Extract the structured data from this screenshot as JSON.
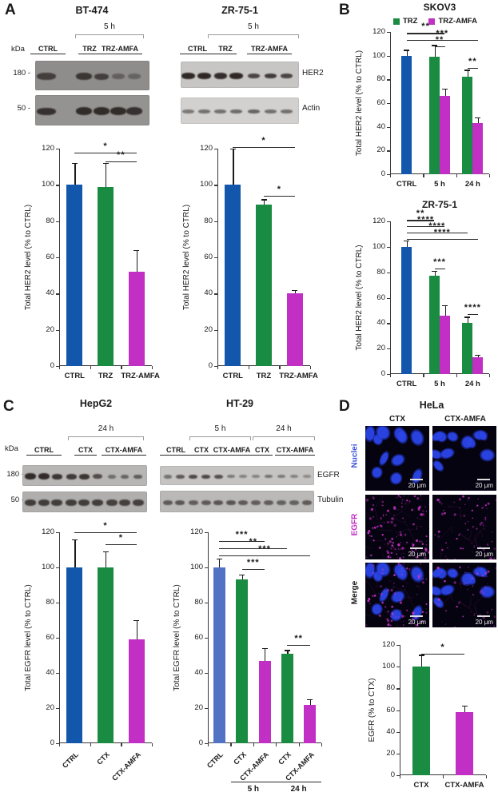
{
  "figure": {
    "panel_a": {
      "label": "A",
      "blots": [
        {
          "title": "BT-474",
          "time_label": "5 h",
          "kda_label": "kDa",
          "markers": [
            "180 -",
            "50 -"
          ],
          "lanes": [
            "CTRL",
            "TRZ",
            "TRZ-AMFA"
          ]
        },
        {
          "title": "ZR-75-1",
          "time_label": "5 h",
          "lanes": [
            "CTRL",
            "TRZ",
            "TRZ-AMFA"
          ],
          "protein_labels": [
            "HER2",
            "Actin"
          ]
        }
      ]
    },
    "panel_b": {
      "label": "B"
    },
    "panel_c": {
      "label": "C",
      "blots": [
        {
          "title": "HepG2",
          "time_label": "24 h",
          "kda_label": "kDa",
          "markers": [
            "180 -",
            "50 -"
          ],
          "lanes": [
            "CTRL",
            "CTX",
            "CTX-AMFA"
          ]
        },
        {
          "title": "HT-29",
          "time_labels": [
            "5 h",
            "24 h"
          ],
          "lanes": [
            "CTRL",
            "CTX",
            "CTX-AMFA",
            "CTX",
            "CTX-AMFA"
          ],
          "protein_labels": [
            "EGFR",
            "Tubulin"
          ]
        }
      ]
    },
    "panel_d": {
      "label": "D",
      "title": "HeLa",
      "columns": [
        "CTX",
        "CTX-AMFA"
      ],
      "rows": [
        {
          "label": "Nuclei",
          "color": "#3a53d8"
        },
        {
          "label": "EGFR",
          "color": "#c12fc4"
        },
        {
          "label": "Merge",
          "color": "#1a1a1a"
        }
      ],
      "scale_label": "20 μm"
    }
  },
  "colors": {
    "blue": "#1257ac",
    "light_blue": "#5273c4",
    "green": "#1a8c42",
    "magenta": "#c12fc4"
  },
  "chart_data": [
    {
      "id": "bt474",
      "type": "bar",
      "title": "",
      "ylabel": "Total HER2 level (% to CTRL)",
      "ylim": [
        0,
        120
      ],
      "ytick": 20,
      "xlabels": [
        "CTRL",
        "TRZ",
        "TRZ-AMFA"
      ],
      "bars": [
        {
          "label": "CTRL",
          "value": 100,
          "err": 12,
          "color": "blue",
          "slot": 0
        },
        {
          "label": "TRZ",
          "value": 99,
          "err": 13,
          "color": "green",
          "slot": 1
        },
        {
          "label": "TRZ-AMFA",
          "value": 52,
          "err": 12,
          "color": "magenta",
          "slot": 2
        }
      ],
      "sig": [
        {
          "a": 0,
          "b": 2,
          "stars": "*",
          "y": 118
        },
        {
          "a": 1,
          "b": 2,
          "stars": "**",
          "y": 113
        }
      ]
    },
    {
      "id": "zr751a",
      "type": "bar",
      "title": "",
      "ylabel": "Total HER2 level (% to CTRL)",
      "ylim": [
        0,
        120
      ],
      "ytick": 20,
      "xlabels": [
        "CTRL",
        "TRZ",
        "TRZ-AMFA"
      ],
      "bars": [
        {
          "label": "CTRL",
          "value": 100,
          "err": 20,
          "color": "blue",
          "slot": 0
        },
        {
          "label": "TRZ",
          "value": 89,
          "err": 3,
          "color": "green",
          "slot": 1
        },
        {
          "label": "TRZ-AMFA",
          "value": 40,
          "err": 2,
          "color": "magenta",
          "slot": 2
        }
      ],
      "sig": [
        {
          "a": 0,
          "b": 2,
          "stars": "*",
          "y": 121
        },
        {
          "a": 1,
          "b": 2,
          "stars": "*",
          "y": 94
        }
      ]
    },
    {
      "id": "skov3",
      "type": "bar",
      "title": "SKOV3",
      "ylabel": "Total HER2 level (% to CTRL)",
      "ylim": [
        0,
        120
      ],
      "ytick": 20,
      "legend": [
        {
          "label": "TRZ",
          "color": "green"
        },
        {
          "label": "TRZ-AMFA",
          "color": "magenta"
        }
      ],
      "xlabels": [
        "CTRL",
        "5 h",
        "24 h"
      ],
      "bars": [
        {
          "label": "CTRL",
          "value": 100,
          "err": 5,
          "color": "blue",
          "slot": 0
        },
        {
          "label": "TRZ",
          "value": 99,
          "err": 10,
          "color": "green",
          "slot": 1,
          "pair": 0
        },
        {
          "label": "TRZ-AMFA",
          "value": 66,
          "err": 6,
          "color": "magenta",
          "slot": 1,
          "pair": 1
        },
        {
          "label": "TRZ",
          "value": 82,
          "err": 6,
          "color": "green",
          "slot": 2,
          "pair": 0
        },
        {
          "label": "TRZ-AMFA",
          "value": 43,
          "err": 5,
          "color": "magenta",
          "slot": 2,
          "pair": 1
        }
      ],
      "sig": [
        {
          "a": 0,
          "b": 2,
          "stars": "**",
          "y": 119
        },
        {
          "a": 0,
          "b": 4,
          "stars": "***",
          "y": 113
        },
        {
          "a": 1,
          "b": 2,
          "stars": "**",
          "y": 108
        },
        {
          "a": 3,
          "b": 4,
          "stars": "**",
          "y": 90
        }
      ]
    },
    {
      "id": "zr751b",
      "type": "bar",
      "title": "ZR-75-1",
      "ylabel": "Total HER2 level (% to CTRL)",
      "ylim": [
        0,
        120
      ],
      "ytick": 20,
      "xlabels": [
        "CTRL",
        "5 h",
        "24 h"
      ],
      "bars": [
        {
          "label": "CTRL",
          "value": 100,
          "err": 5,
          "color": "blue",
          "slot": 0
        },
        {
          "label": "TRZ",
          "value": 77,
          "err": 4,
          "color": "green",
          "slot": 1,
          "pair": 0
        },
        {
          "label": "TRZ-AMFA",
          "value": 46,
          "err": 8,
          "color": "magenta",
          "slot": 1,
          "pair": 1
        },
        {
          "label": "TRZ",
          "value": 40,
          "err": 5,
          "color": "green",
          "slot": 2,
          "pair": 0
        },
        {
          "label": "TRZ-AMFA",
          "value": 13,
          "err": 2,
          "color": "magenta",
          "slot": 2,
          "pair": 1
        }
      ],
      "sig": [
        {
          "a": 0,
          "b": 1,
          "stars": "**",
          "y": 121
        },
        {
          "a": 0,
          "b": 2,
          "stars": "****",
          "y": 116
        },
        {
          "a": 0,
          "b": 3,
          "stars": "****",
          "y": 111
        },
        {
          "a": 0,
          "b": 4,
          "stars": "****",
          "y": 106
        },
        {
          "a": 1,
          "b": 2,
          "stars": "***",
          "y": 83
        },
        {
          "a": 3,
          "b": 4,
          "stars": "****",
          "y": 47
        }
      ]
    },
    {
      "id": "hepg2",
      "type": "bar",
      "title": "",
      "ylabel": "Total EGFR level (% to CTRL)",
      "ylim": [
        0,
        120
      ],
      "ytick": 20,
      "xlabels": [
        "CTRL",
        "CTX",
        "CTX-AMFA"
      ],
      "bars": [
        {
          "label": "CTRL",
          "value": 100,
          "err": 16,
          "color": "blue",
          "slot": 0
        },
        {
          "label": "CTX",
          "value": 100,
          "err": 9,
          "color": "green",
          "slot": 1
        },
        {
          "label": "CTX-AMFA",
          "value": 59,
          "err": 11,
          "color": "magenta",
          "slot": 2
        }
      ],
      "sig": [
        {
          "a": 0,
          "b": 2,
          "stars": "*",
          "y": 120
        },
        {
          "a": 1,
          "b": 2,
          "stars": "*",
          "y": 113
        }
      ]
    },
    {
      "id": "ht29",
      "type": "bar",
      "title": "",
      "ylabel": "Total EGFR level (% to CTRL)",
      "ylim": [
        0,
        120
      ],
      "ytick": 20,
      "xlabels": [
        "CTRL",
        "CTX",
        "CTX-AMFA",
        "CTX",
        "CTX-AMFA"
      ],
      "groups": [
        {
          "label": "5 h",
          "slots": [
            1,
            2
          ]
        },
        {
          "label": "24 h",
          "slots": [
            3,
            4
          ]
        }
      ],
      "bars": [
        {
          "label": "CTRL",
          "value": 100,
          "err": 5,
          "color": "light_blue",
          "slot": 0
        },
        {
          "label": "CTX",
          "value": 93,
          "err": 3,
          "color": "green",
          "slot": 1
        },
        {
          "label": "CTX-AMFA",
          "value": 47,
          "err": 7,
          "color": "magenta",
          "slot": 2
        },
        {
          "label": "CTX",
          "value": 51,
          "err": 2,
          "color": "green",
          "slot": 3
        },
        {
          "label": "CTX-AMFA",
          "value": 22,
          "err": 3,
          "color": "magenta",
          "slot": 4
        }
      ],
      "sig": [
        {
          "a": 0,
          "b": 2,
          "stars": "***",
          "y": 115
        },
        {
          "a": 0,
          "b": 3,
          "stars": "**",
          "y": 111
        },
        {
          "a": 0,
          "b": 4,
          "stars": "***",
          "y": 107
        },
        {
          "a": 1,
          "b": 2,
          "stars": "***",
          "y": 99
        },
        {
          "a": 3,
          "b": 4,
          "stars": "**",
          "y": 56
        }
      ]
    },
    {
      "id": "hela",
      "type": "bar",
      "title": "",
      "ylabel": "EGFR (% to CTX)",
      "ylim": [
        0,
        120
      ],
      "ytick": 20,
      "xlabels": [
        "CTX",
        "CTX-AMFA"
      ],
      "bars": [
        {
          "label": "CTX",
          "value": 100,
          "err": 11,
          "color": "green",
          "slot": 0
        },
        {
          "label": "CTX-AMFA",
          "value": 58,
          "err": 6,
          "color": "magenta",
          "slot": 1
        }
      ],
      "sig": [
        {
          "a": 0,
          "b": 1,
          "stars": "*",
          "y": 112
        }
      ]
    }
  ]
}
